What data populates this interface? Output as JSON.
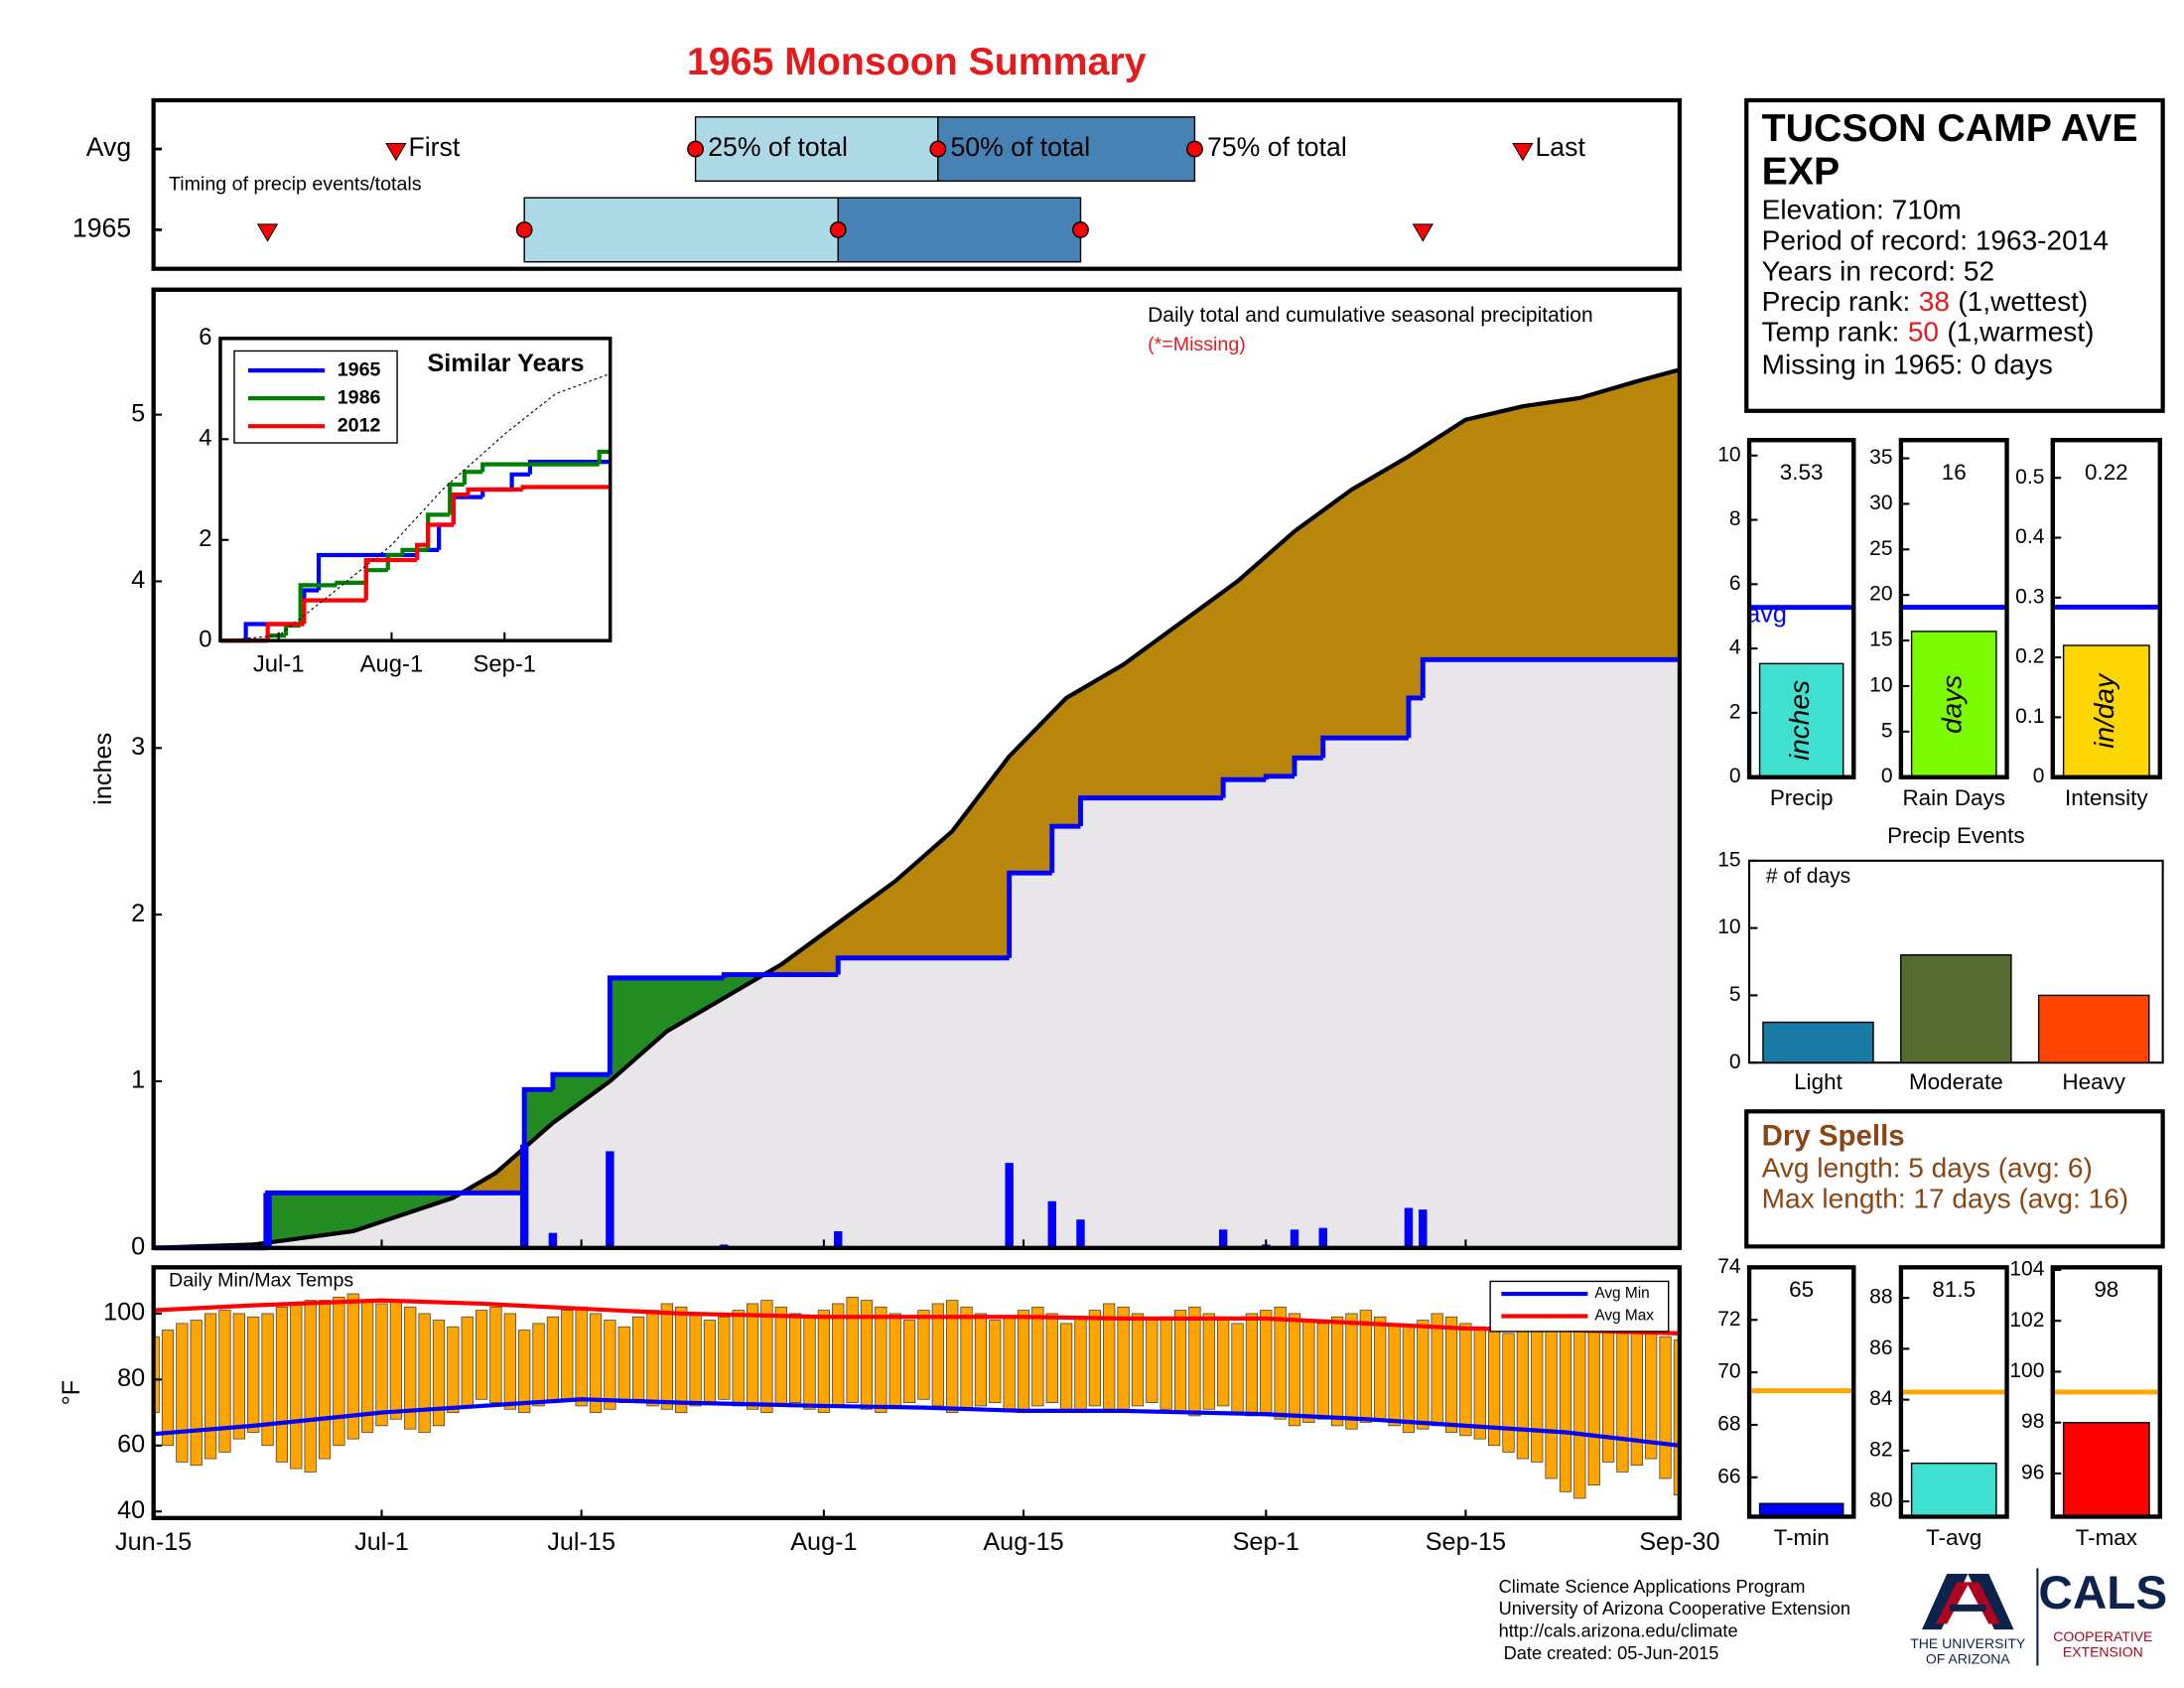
{
  "page_title": "1965 Monsoon Summary",
  "station": {
    "name_lines": [
      "TUCSON CAMP AVE",
      "EXP"
    ],
    "elevation": "Elevation: 710m",
    "period": "Period of record: 1963-2014",
    "years": "Years in record: 52",
    "precip_rank": {
      "label": "Precip rank:",
      "value": 38,
      "note": "(1,wettest)"
    },
    "temp_rank": {
      "label": "Temp rank:",
      "value": 50,
      "note": "(1,warmest)"
    },
    "missing": "Missing in 1965: 0 days"
  },
  "dry_spells": {
    "title": "Dry Spells",
    "lines": [
      "Avg length: 5 days (avg: 6)",
      "Max length: 17 days (avg: 16)"
    ]
  },
  "footer": [
    "Climate Science Applications Program",
    "University of Arizona Cooperative Extension",
    "http://cals.arizona.edu/climate",
    " Date created: 05-Jun-2015"
  ],
  "logos": {
    "university": [
      "THE UNIVERSITY",
      "OF ARIZONA"
    ],
    "cals": "CALS",
    "extension": [
      "COOPERATIVE",
      "EXTENSION"
    ]
  },
  "chart_data": [
    {
      "type": "timing",
      "annotation": "Timing of precip events/totals",
      "xlim": [
        "Jun-15",
        "Sep-30"
      ],
      "colors": [
        "#add8e6",
        "#4682b4"
      ],
      "marker_color": "#ff0000",
      "labels": {
        "first": "First",
        "q25": "25% of total",
        "q50": "50% of total",
        "q75": "75% of total",
        "last": "Last"
      },
      "rows": [
        {
          "name": "Avg",
          "first": "Jul-2",
          "q25": "Jul-23",
          "q50": "Aug-9",
          "q75": "Aug-27",
          "last": "Sep-19"
        },
        {
          "name": "1965",
          "first": "Jun-23",
          "q25": "Jul-11",
          "q50": "Aug-2",
          "q75": "Aug-19",
          "last": "Sep-12"
        }
      ]
    },
    {
      "type": "cumulative",
      "ylabel": "inches",
      "annotation": "Daily total and cumulative seasonal precipitation",
      "missing_note": "(*=Missing)",
      "xlim": [
        "Jun-15",
        "Sep-30"
      ],
      "ylim": [
        0,
        5.75
      ],
      "yticks": [
        0,
        1,
        2,
        3,
        4,
        5
      ],
      "fill_above": "#228b22",
      "fill_below": "#b8860b",
      "fill_base": "#e8e6e8",
      "bars": {
        "color": "#0000ff",
        "x": [
          "Jun-23",
          "Jul-11",
          "Jul-13",
          "Jul-17",
          "Jul-25",
          "Aug-2",
          "Aug-14",
          "Aug-17",
          "Aug-19",
          "Aug-29",
          "Sep-1",
          "Sep-3",
          "Sep-5",
          "Sep-11",
          "Sep-12"
        ],
        "values": [
          0.33,
          0.62,
          0.09,
          0.58,
          0.02,
          0.1,
          0.51,
          0.28,
          0.17,
          0.11,
          0.02,
          0.11,
          0.12,
          0.24,
          0.23
        ]
      },
      "observed": {
        "color": "#0000ff",
        "x": [
          "Jun-15",
          "Jun-23",
          "Jul-11",
          "Jul-13",
          "Jul-17",
          "Jul-25",
          "Aug-2",
          "Aug-14",
          "Aug-17",
          "Aug-19",
          "Aug-29",
          "Sep-1",
          "Sep-3",
          "Sep-5",
          "Sep-11",
          "Sep-12",
          "Sep-30"
        ],
        "values": [
          0,
          0.33,
          0.95,
          1.04,
          1.62,
          1.64,
          1.74,
          2.25,
          2.53,
          2.7,
          2.81,
          2.83,
          2.94,
          3.06,
          3.3,
          3.53,
          3.53
        ]
      },
      "average": {
        "color": "#000000",
        "x": [
          "Jun-15",
          "Jun-22",
          "Jun-29",
          "Jul-6",
          "Jul-9",
          "Jul-13",
          "Jul-17",
          "Jul-21",
          "Jul-25",
          "Jul-29",
          "Aug-2",
          "Aug-6",
          "Aug-10",
          "Aug-14",
          "Aug-18",
          "Aug-22",
          "Aug-26",
          "Aug-30",
          "Sep-3",
          "Sep-7",
          "Sep-11",
          "Sep-15",
          "Sep-19",
          "Sep-23",
          "Sep-27",
          "Sep-30"
        ],
        "values": [
          0,
          0.02,
          0.1,
          0.3,
          0.45,
          0.75,
          1.0,
          1.3,
          1.5,
          1.7,
          1.95,
          2.2,
          2.5,
          2.95,
          3.3,
          3.5,
          3.75,
          4.0,
          4.3,
          4.55,
          4.75,
          4.97,
          5.05,
          5.1,
          5.2,
          5.27
        ]
      }
    },
    {
      "type": "line",
      "title": "Similar Years",
      "xlim": [
        "Jun-15",
        "Sep-30"
      ],
      "xticks": [
        "Jul-1",
        "Aug-1",
        "Sep-1"
      ],
      "ylim": [
        0,
        6
      ],
      "yticks": [
        0,
        2,
        4,
        6
      ],
      "series": [
        {
          "name": "1965",
          "color": "#0000ff",
          "x": [
            "Jun-15",
            "Jun-22",
            "Jul-8",
            "Jul-12",
            "Aug-8",
            "Aug-14",
            "Aug-18",
            "Aug-26",
            "Sep-3",
            "Sep-8",
            "Sep-30"
          ],
          "values": [
            0,
            0.33,
            1.0,
            1.7,
            1.8,
            2.3,
            2.85,
            3.0,
            3.3,
            3.55,
            3.55
          ]
        },
        {
          "name": "1986",
          "color": "#008000",
          "x": [
            "Jun-15",
            "Jun-28",
            "Jul-3",
            "Jul-7",
            "Jul-17",
            "Jul-25",
            "Jul-31",
            "Aug-4",
            "Aug-11",
            "Aug-17",
            "Aug-21",
            "Aug-26",
            "Sep-27",
            "Sep-30"
          ],
          "values": [
            0,
            0.1,
            0.3,
            1.1,
            1.15,
            1.4,
            1.7,
            1.8,
            2.5,
            3.1,
            3.35,
            3.5,
            3.75,
            3.75
          ]
        },
        {
          "name": "2012",
          "color": "#ff0000",
          "x": [
            "Jun-15",
            "Jun-28",
            "Jul-8",
            "Jul-25",
            "Aug-8",
            "Aug-11",
            "Aug-18",
            "Aug-22",
            "Sep-6",
            "Sep-30"
          ],
          "values": [
            0,
            0.33,
            0.8,
            1.6,
            1.9,
            2.3,
            2.9,
            3.0,
            3.05,
            3.05
          ]
        },
        {
          "color": "#000000",
          "dash": true,
          "x": [
            "Jun-15",
            "Jul-1",
            "Jul-15",
            "Aug-1",
            "Aug-15",
            "Sep-1",
            "Sep-15",
            "Sep-30"
          ],
          "values": [
            0,
            0.1,
            0.9,
            1.9,
            3.0,
            4.1,
            4.9,
            5.3
          ]
        }
      ]
    },
    {
      "type": "summary_bar",
      "category": "Precip",
      "value": 3.53,
      "avg": 5.28,
      "avg_label": "avg",
      "unit": "inches",
      "color": "#40e0d0",
      "avg_color": "#0000ff",
      "ylim": [
        0,
        10.48
      ],
      "yticks": [
        0,
        2,
        4,
        6,
        8,
        10
      ]
    },
    {
      "type": "summary_bar",
      "category": "Rain Days",
      "value": 16,
      "avg": 18.65,
      "unit": "days",
      "color": "#7cfc00",
      "avg_color": "#0000ff",
      "ylim": [
        0,
        37
      ],
      "yticks": [
        0,
        5,
        10,
        15,
        20,
        25,
        30,
        35
      ]
    },
    {
      "type": "summary_bar",
      "category": "Intensity",
      "value": 0.22,
      "avg": 0.284,
      "unit": "in/day",
      "color": "#ffd700",
      "avg_color": "#0000ff",
      "ylim": [
        0,
        0.563
      ],
      "yticks": [
        0,
        0.1,
        0.2,
        0.3,
        0.4,
        0.5
      ]
    },
    {
      "type": "bar",
      "title": "Precip Events",
      "annotation": "# of days",
      "categories": [
        "Light",
        "Moderate",
        "Heavy"
      ],
      "values": [
        3,
        8,
        5
      ],
      "colors": [
        "#1a7aa6",
        "#556b2f",
        "#ff4500"
      ],
      "ylim": [
        0,
        15
      ],
      "yticks": [
        0,
        5,
        10,
        15
      ]
    },
    {
      "type": "temp_range",
      "annotation": "Daily Min/Max Temps",
      "ylabel": "°F",
      "color": "#ffa500",
      "xlim": [
        "Jun-15",
        "Sep-30"
      ],
      "xticks": [
        "Jun-15",
        "Jul-1",
        "Jul-15",
        "Aug-1",
        "Aug-15",
        "Sep-1",
        "Sep-15",
        "Sep-30"
      ],
      "ylim": [
        38,
        114
      ],
      "yticks": [
        40,
        60,
        80,
        100
      ],
      "legend": "upper right",
      "x": [
        "Jun-15",
        "Jun-16",
        "Jun-17",
        "Jun-18",
        "Jun-19",
        "Jun-20",
        "Jun-21",
        "Jun-22",
        "Jun-23",
        "Jun-24",
        "Jun-25",
        "Jun-26",
        "Jun-27",
        "Jun-28",
        "Jun-29",
        "Jun-30",
        "Jul-1",
        "Jul-2",
        "Jul-3",
        "Jul-4",
        "Jul-5",
        "Jul-6",
        "Jul-7",
        "Jul-8",
        "Jul-9",
        "Jul-10",
        "Jul-11",
        "Jul-12",
        "Jul-13",
        "Jul-14",
        "Jul-15",
        "Jul-16",
        "Jul-17",
        "Jul-18",
        "Jul-19",
        "Jul-20",
        "Jul-21",
        "Jul-22",
        "Jul-23",
        "Jul-24",
        "Jul-25",
        "Jul-26",
        "Jul-27",
        "Jul-28",
        "Jul-29",
        "Jul-30",
        "Jul-31",
        "Aug-1",
        "Aug-2",
        "Aug-3",
        "Aug-4",
        "Aug-5",
        "Aug-6",
        "Aug-7",
        "Aug-8",
        "Aug-9",
        "Aug-10",
        "Aug-11",
        "Aug-12",
        "Aug-13",
        "Aug-14",
        "Aug-15",
        "Aug-16",
        "Aug-17",
        "Aug-18",
        "Aug-19",
        "Aug-20",
        "Aug-21",
        "Aug-22",
        "Aug-23",
        "Aug-24",
        "Aug-25",
        "Aug-26",
        "Aug-27",
        "Aug-28",
        "Aug-29",
        "Aug-30",
        "Aug-31",
        "Sep-1",
        "Sep-2",
        "Sep-3",
        "Sep-4",
        "Sep-5",
        "Sep-6",
        "Sep-7",
        "Sep-8",
        "Sep-9",
        "Sep-10",
        "Sep-11",
        "Sep-12",
        "Sep-13",
        "Sep-14",
        "Sep-15",
        "Sep-16",
        "Sep-17",
        "Sep-18",
        "Sep-19",
        "Sep-20",
        "Sep-21",
        "Sep-22",
        "Sep-23",
        "Sep-24",
        "Sep-25",
        "Sep-26",
        "Sep-27",
        "Sep-28",
        "Sep-29",
        "Sep-30"
      ],
      "max": [
        93,
        95,
        97,
        98,
        100,
        101,
        100,
        99,
        100,
        102,
        103,
        104,
        104,
        105,
        106,
        104,
        103,
        104,
        102,
        100,
        98,
        96,
        99,
        101,
        102,
        100,
        95,
        97,
        99,
        101,
        102,
        100,
        98,
        96,
        99,
        101,
        103,
        102,
        100,
        98,
        99,
        101,
        103,
        104,
        102,
        100,
        99,
        101,
        103,
        105,
        104,
        102,
        100,
        98,
        101,
        103,
        104,
        102,
        100,
        98,
        99,
        101,
        102,
        100,
        97,
        99,
        101,
        103,
        102,
        100,
        98,
        99,
        101,
        102,
        100,
        99,
        97,
        100,
        101,
        102,
        100,
        98,
        97,
        99,
        100,
        101,
        99,
        97,
        96,
        98,
        100,
        99,
        97,
        96,
        95,
        94,
        96,
        98,
        97,
        95,
        96,
        97,
        95,
        94,
        96,
        97,
        93,
        92
      ],
      "min": [
        70,
        60,
        55,
        54,
        56,
        58,
        62,
        64,
        60,
        55,
        53,
        52,
        56,
        60,
        62,
        64,
        66,
        68,
        65,
        64,
        66,
        70,
        72,
        74,
        73,
        71,
        70,
        72,
        73,
        74,
        72,
        70,
        71,
        73,
        74,
        72,
        71,
        70,
        72,
        73,
        74,
        72,
        71,
        70,
        72,
        73,
        71,
        70,
        72,
        73,
        71,
        70,
        72,
        73,
        74,
        72,
        70,
        71,
        72,
        73,
        71,
        70,
        72,
        73,
        71,
        70,
        72,
        71,
        70,
        72,
        73,
        71,
        70,
        69,
        71,
        72,
        70,
        69,
        70,
        68,
        66,
        67,
        68,
        66,
        65,
        67,
        68,
        66,
        64,
        65,
        66,
        64,
        63,
        62,
        60,
        58,
        56,
        55,
        50,
        46,
        44,
        48,
        55,
        52,
        54,
        56,
        50,
        45
      ],
      "series": [
        {
          "name": "Avg Min",
          "color": "#0000ff",
          "x": [
            "Jun-15",
            "Jun-22",
            "Jul-1",
            "Jul-8",
            "Jul-15",
            "Jul-22",
            "Aug-1",
            "Aug-8",
            "Aug-15",
            "Aug-22",
            "Sep-1",
            "Sep-8",
            "Sep-15",
            "Sep-22",
            "Sep-30"
          ],
          "values": [
            63.5,
            66,
            70,
            72,
            74,
            73,
            72,
            71.5,
            70.5,
            70.5,
            69.5,
            68,
            66,
            64,
            60
          ]
        },
        {
          "name": "Avg Max",
          "color": "#ff0000",
          "x": [
            "Jun-15",
            "Jun-22",
            "Jul-1",
            "Jul-8",
            "Jul-15",
            "Jul-22",
            "Aug-1",
            "Aug-8",
            "Aug-15",
            "Aug-22",
            "Sep-1",
            "Sep-8",
            "Sep-15",
            "Sep-22",
            "Sep-30"
          ],
          "values": [
            101,
            102.5,
            104,
            103,
            101.5,
            100,
            99,
            99,
            99,
            98.5,
            98.5,
            97,
            95.5,
            95,
            94
          ]
        }
      ]
    },
    {
      "type": "summary_bar",
      "category": "T-min",
      "value": 65,
      "avg": 69.3,
      "color": "#0000ff",
      "avg_color": "#ffa500",
      "ylim": [
        64.5,
        74
      ],
      "yticks": [
        66,
        68,
        70,
        72,
        74
      ]
    },
    {
      "type": "summary_bar",
      "category": "T-avg",
      "value": 81.5,
      "avg": 84.3,
      "color": "#40e0d0",
      "avg_color": "#ffa500",
      "ylim": [
        79.4,
        89.2
      ],
      "yticks": [
        80,
        82,
        84,
        86,
        88
      ]
    },
    {
      "type": "summary_bar",
      "category": "T-max",
      "value": 98,
      "avg": 99.2,
      "color": "#ff0000",
      "avg_color": "#ffa500",
      "ylim": [
        94.3,
        104.1
      ],
      "yticks": [
        96,
        98,
        100,
        102,
        104
      ]
    }
  ]
}
